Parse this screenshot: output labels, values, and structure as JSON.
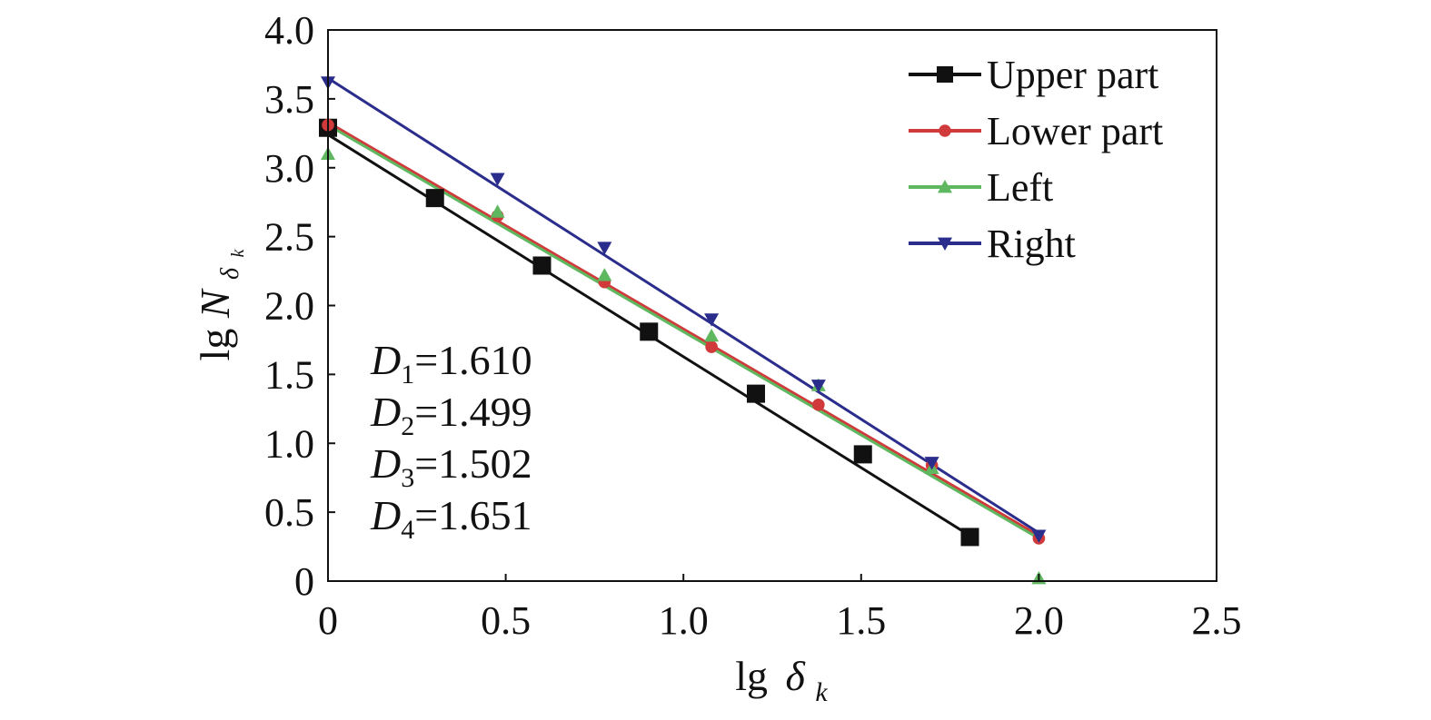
{
  "chart_data": {
    "type": "scatter",
    "title": "",
    "xlim": [
      0,
      2.5
    ],
    "ylim": [
      0,
      4.0
    ],
    "x_ticks": [
      "0",
      "0.5",
      "1.0",
      "1.5",
      "2.0",
      "2.5"
    ],
    "y_ticks": [
      "0",
      "0.5",
      "1.0",
      "1.5",
      "2.0",
      "2.5",
      "3.0",
      "3.5",
      "4.0"
    ],
    "xlabel": {
      "prefix": "lg",
      "symbol": "δ",
      "subscript": "k"
    },
    "ylabel": {
      "prefix": "lg",
      "symbol": "N",
      "subscript": "δ",
      "sub_subscript": "k"
    },
    "grid": false,
    "legend_position": "top-right",
    "series": [
      {
        "name": "Upper part",
        "color": "#111111",
        "marker": "square",
        "x": [
          0,
          0.301,
          0.602,
          0.903,
          1.204,
          1.505,
          1.806
        ],
        "y": [
          3.29,
          2.78,
          2.29,
          1.81,
          1.36,
          0.92,
          0.32
        ],
        "fit": {
          "x": [
            0,
            1.806
          ],
          "y": [
            3.24,
            0.33
          ]
        }
      },
      {
        "name": "Lower part",
        "color": "#d03a3a",
        "marker": "circle",
        "x": [
          0,
          0.477,
          0.778,
          1.079,
          1.38,
          1.699,
          2.0
        ],
        "y": [
          3.31,
          2.65,
          2.17,
          1.7,
          1.28,
          0.84,
          0.31
        ],
        "fit": {
          "x": [
            0,
            2.0
          ],
          "y": [
            3.33,
            0.33
          ]
        }
      },
      {
        "name": "Left",
        "color": "#5fb85f",
        "marker": "triangle-up",
        "x": [
          0,
          0.477,
          0.778,
          1.079,
          1.38,
          1.699,
          2.0
        ],
        "y": [
          3.1,
          2.68,
          2.22,
          1.78,
          1.42,
          0.82,
          0.02
        ],
        "fit": {
          "x": [
            0,
            2.0
          ],
          "y": [
            3.31,
            0.31
          ]
        }
      },
      {
        "name": "Right",
        "color": "#2a2d8c",
        "marker": "triangle-down",
        "x": [
          0,
          0.477,
          0.778,
          1.079,
          1.38,
          1.699,
          2.0
        ],
        "y": [
          3.62,
          2.92,
          2.42,
          1.9,
          1.42,
          0.86,
          0.33
        ],
        "fit": {
          "x": [
            0,
            2.0
          ],
          "y": [
            3.65,
            0.35
          ]
        }
      }
    ],
    "annotations": [
      {
        "symbol": "D",
        "subscript": "1",
        "value": "=1.610"
      },
      {
        "symbol": "D",
        "subscript": "2",
        "value": "=1.499"
      },
      {
        "symbol": "D",
        "subscript": "3",
        "value": "=1.502"
      },
      {
        "symbol": "D",
        "subscript": "4",
        "value": "=1.651"
      }
    ]
  }
}
